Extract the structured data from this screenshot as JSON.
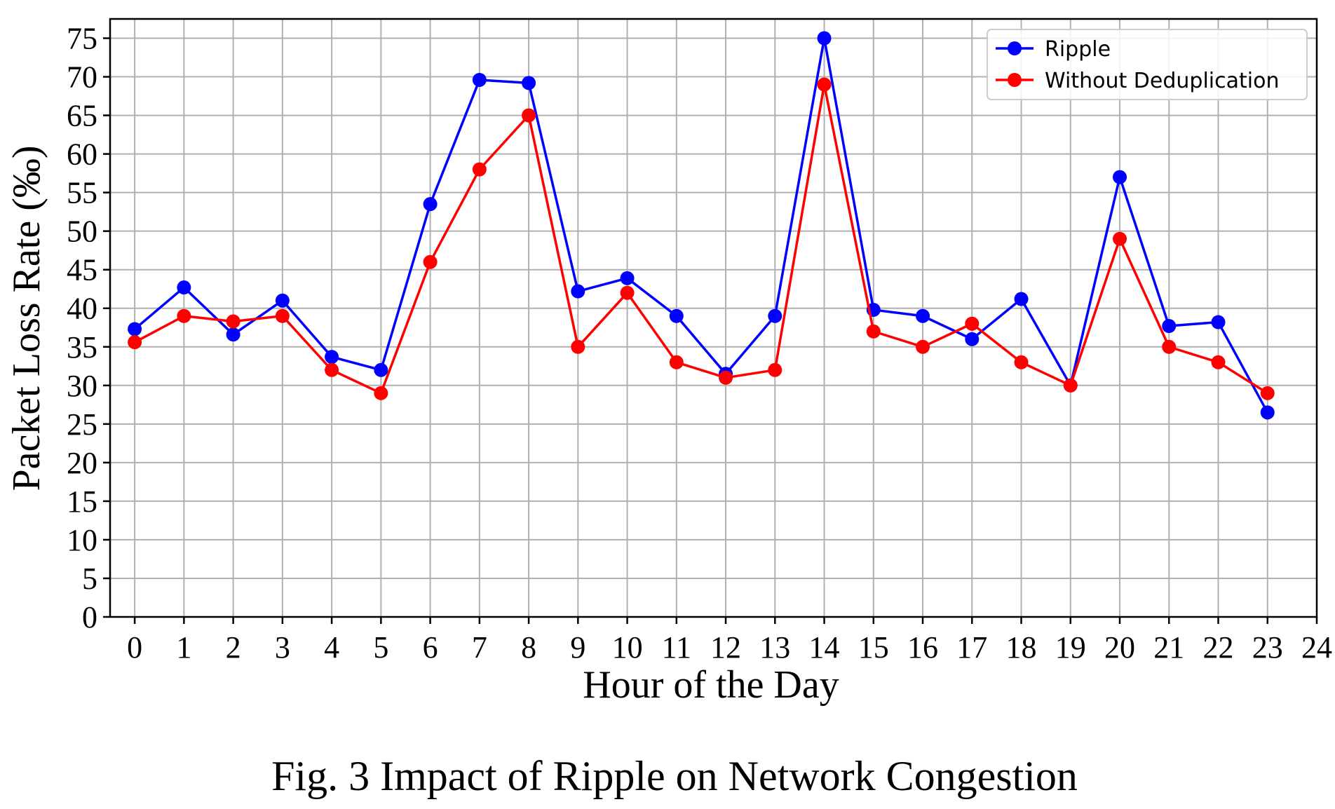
{
  "chart_data": {
    "type": "line",
    "xlabel": "Hour of the Day",
    "ylabel": "Packet Loss Rate (‰)",
    "caption": "Fig. 3 Impact of Ripple on Network Congestion",
    "xlim": [
      -0.5,
      24
    ],
    "ylim": [
      0,
      77.5
    ],
    "xticks": [
      0,
      1,
      2,
      3,
      4,
      5,
      6,
      7,
      8,
      9,
      10,
      11,
      12,
      13,
      14,
      15,
      16,
      17,
      18,
      19,
      20,
      21,
      22,
      23,
      24
    ],
    "yticks": [
      0,
      5,
      10,
      15,
      20,
      25,
      30,
      35,
      40,
      45,
      50,
      55,
      60,
      65,
      70,
      75
    ],
    "grid": true,
    "legend_position": "top-right",
    "x": [
      0,
      1,
      2,
      3,
      4,
      5,
      6,
      7,
      8,
      9,
      10,
      11,
      12,
      13,
      14,
      15,
      16,
      17,
      18,
      19,
      20,
      21,
      22,
      23
    ],
    "series": [
      {
        "name": "Ripple",
        "color": "#0000ff",
        "values": [
          37.3,
          42.7,
          36.6,
          41.0,
          33.7,
          32.0,
          53.5,
          69.6,
          69.2,
          42.2,
          43.9,
          39.0,
          31.5,
          39.0,
          75.0,
          39.8,
          39.0,
          36.0,
          41.2,
          30.0,
          57.0,
          37.7,
          38.2,
          26.5
        ]
      },
      {
        "name": "Without Deduplication",
        "color": "#ff0000",
        "values": [
          35.6,
          39.0,
          38.3,
          39.0,
          32.0,
          29.0,
          46.0,
          58.0,
          65.0,
          35.0,
          42.0,
          33.0,
          31.0,
          32.0,
          69.0,
          37.0,
          35.0,
          38.0,
          33.0,
          30.0,
          49.0,
          35.0,
          33.0,
          29.0
        ]
      }
    ]
  }
}
